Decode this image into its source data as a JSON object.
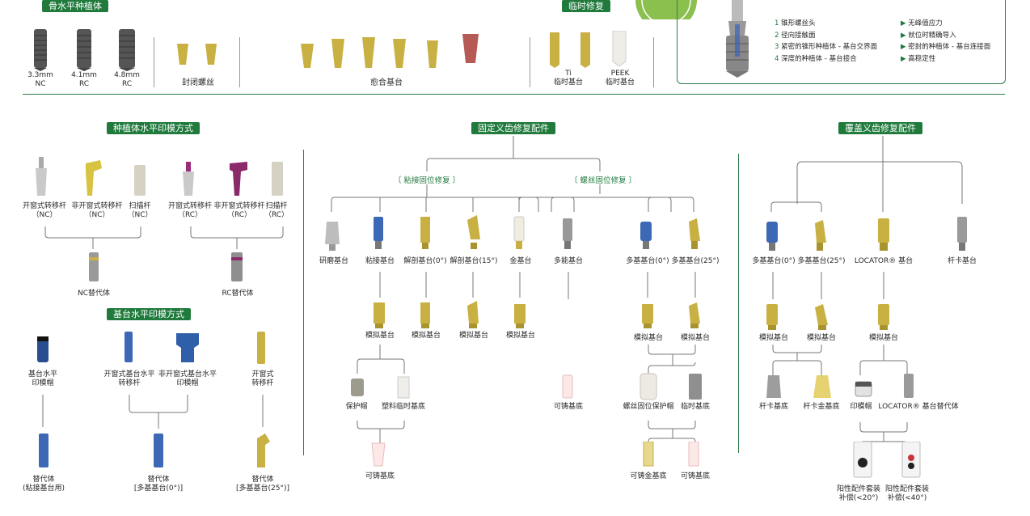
{
  "top": {
    "bone_level_title": "骨水平种植体",
    "temp_title": "临时修复",
    "implants": [
      {
        "l1": "3.3mm",
        "l2": "NC"
      },
      {
        "l1": "4.1mm",
        "l2": "RC"
      },
      {
        "l1": "4.8mm",
        "l2": "RC"
      }
    ],
    "closure_screw": "封闭螺丝",
    "healing_abutment": "愈合基台",
    "temp_ti_1": "Ti",
    "temp_ti_2": "临时基台",
    "temp_peek_1": "PEEK",
    "temp_peek_2": "临时基台"
  },
  "info": {
    "left": [
      "锥形螺丝头",
      "径向接触面",
      "紧密的锥形种植体 - 基台交界面",
      "深度的种植体 - 基台接合"
    ],
    "right": [
      "无峰值应力",
      "就位时精确导入",
      "密封的种植体 - 基台连接面",
      "高稳定性"
    ]
  },
  "sections": {
    "impression": "种植体水平印模方式",
    "abutment_impression": "基台水平印模方式",
    "fixed": "固定义齿修复配件",
    "overdenture": "覆盖义齿修复配件",
    "cemented": "〔 粘接固位修复 〕",
    "screwed": "〔 螺丝固位修复 〕"
  },
  "labels": {
    "imp_nc": [
      [
        "开窗式转移杆",
        "（NC）"
      ],
      [
        "非开窗式转移杆",
        "（NC）"
      ],
      [
        "扫描杆",
        "（NC）"
      ]
    ],
    "imp_rc": [
      [
        "开窗式转移杆",
        "（RC）"
      ],
      [
        "非开窗式转移杆",
        "（RC）"
      ],
      [
        "扫描杆",
        "（RC）"
      ]
    ],
    "nc_analog": "NC替代体",
    "rc_analog": "RC替代体",
    "ab_cap": [
      "基台水平",
      "印模帽"
    ],
    "ab_open": [
      "开窗式基台水平",
      "转移杆"
    ],
    "ab_closed": [
      "非开窗式基台水平",
      "印模帽"
    ],
    "ab_open2": [
      "开窗式",
      "转移杆"
    ],
    "ab_rep1": [
      "替代体",
      "(粘接基台用)"
    ],
    "ab_rep2": [
      "替代体",
      "[多基基台(0°)]"
    ],
    "ab_rep3": [
      "替代体",
      "[多基基台(25°)]"
    ],
    "f_row1": [
      "研磨基台",
      "粘接基台",
      "解剖基台(0°)",
      "解剖基台(15°)",
      "金基台",
      "多能基台",
      "多基基台(0°)",
      "多基基台(25°)"
    ],
    "analog": "模拟基台",
    "protect_cap": "保护帽",
    "plastic_temp": "塑料临时基底",
    "castable": "可铸基底",
    "screw_cap": "螺丝固位保护帽",
    "temp_base": "临时基底",
    "cast_gold": "可铸金基底",
    "o_row1": [
      "多基基台(0°)",
      "多基基台(25°)",
      "LOCATOR® 基台",
      "杆卡基台"
    ],
    "bar_base": "杆卡基底",
    "bar_gold": "杆卡金基底",
    "imp_cap": "印模帽",
    "locator_rep": "LOCATOR® 基台替代体",
    "male_20": [
      "阳性配件套装",
      "补偿(<20°)"
    ],
    "male_40": [
      "阳性配件套装",
      "补偿(<40°)"
    ]
  },
  "colors": {
    "green": "#1f7a3c",
    "gold": "#c9b042",
    "blue": "#2e5fa8",
    "silver": "#a7a7a7",
    "purple": "#8a2a6b"
  }
}
